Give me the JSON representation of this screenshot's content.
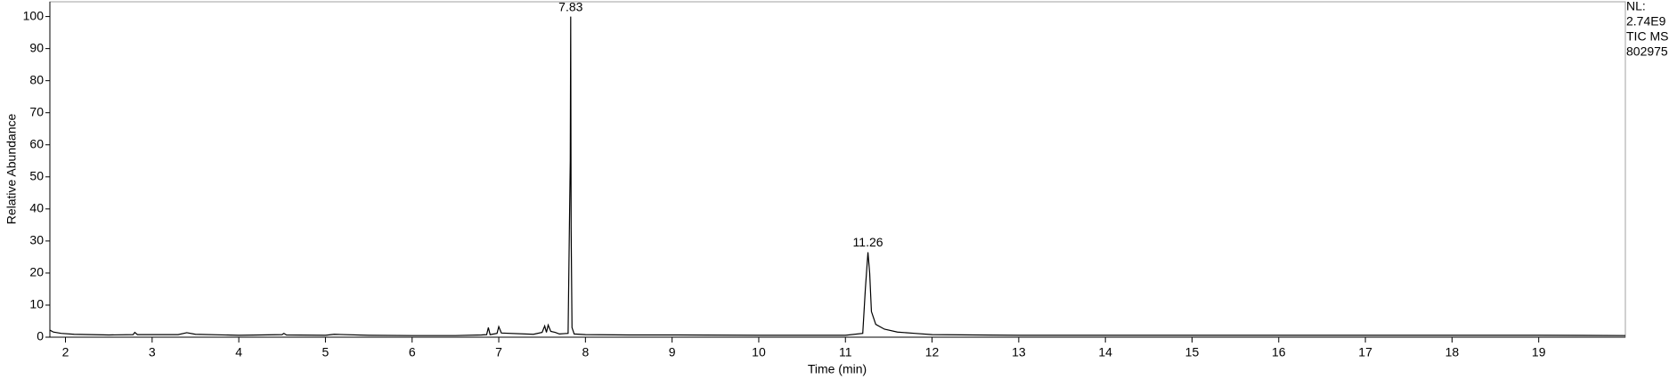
{
  "chart_data": {
    "type": "line",
    "x_label": "Time (min)",
    "y_label": "Relative Abundance",
    "info": [
      "NL:",
      "2.74E9",
      "TIC MS",
      "802975"
    ],
    "xlim": [
      1.82,
      20.0
    ],
    "ylim": [
      0,
      104.6
    ],
    "xticks": [
      2,
      3,
      4,
      5,
      6,
      7,
      8,
      9,
      10,
      11,
      12,
      13,
      14,
      15,
      16,
      17,
      18,
      19
    ],
    "yticks": [
      0,
      10,
      20,
      30,
      40,
      50,
      60,
      70,
      80,
      90,
      100
    ],
    "series": [
      {
        "color": "#000000",
        "x": [
          1.82,
          1.86,
          1.95,
          2.1,
          2.5,
          2.78,
          2.8,
          2.83,
          3.3,
          3.4,
          3.5,
          4.0,
          4.5,
          4.52,
          4.55,
          5.0,
          5.1,
          5.5,
          6.0,
          6.5,
          6.8,
          6.86,
          6.88,
          6.9,
          6.98,
          7.0,
          7.03,
          7.4,
          7.5,
          7.53,
          7.55,
          7.57,
          7.6,
          7.65,
          7.7,
          7.8,
          7.815,
          7.825,
          7.83,
          7.835,
          7.845,
          7.87,
          8.0,
          8.5,
          9.0,
          10.0,
          11.0,
          11.2,
          11.23,
          11.26,
          11.28,
          11.3,
          11.35,
          11.45,
          11.6,
          11.8,
          12.0,
          13.0,
          15.0,
          17.0,
          19.0,
          20.0
        ],
        "values": [
          2.2,
          1.6,
          1.2,
          0.9,
          0.7,
          0.8,
          1.5,
          0.8,
          0.8,
          1.4,
          0.9,
          0.6,
          0.8,
          1.2,
          0.7,
          0.6,
          0.9,
          0.6,
          0.5,
          0.5,
          0.7,
          0.8,
          3.0,
          0.8,
          1.2,
          3.3,
          1.3,
          0.9,
          1.5,
          3.5,
          1.5,
          3.8,
          1.8,
          1.5,
          1.0,
          1.2,
          34,
          55,
          100,
          34,
          3,
          1.0,
          0.8,
          0.7,
          0.7,
          0.6,
          0.6,
          1.2,
          15,
          26.5,
          20,
          8,
          4,
          2.5,
          1.6,
          1.2,
          0.8,
          0.6,
          0.6,
          0.6,
          0.6,
          0.5
        ]
      }
    ],
    "peaks": [
      {
        "x": 7.83,
        "y": 100
      },
      {
        "x": 11.26,
        "y": 26.5
      }
    ]
  }
}
